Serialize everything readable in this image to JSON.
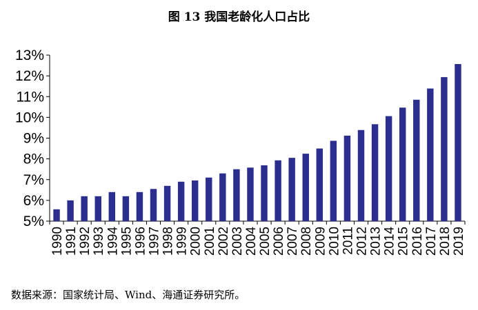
{
  "title": "图 13  我国老龄化人口占比",
  "source": "数据来源：国家统计局、Wind、海通证券研究所。",
  "colors": {
    "bar": "#2b2d8f",
    "axis": "#000000",
    "text": "#000000"
  },
  "chart_data": {
    "type": "bar",
    "title": "图 13  我国老龄化人口占比",
    "xlabel": "",
    "ylabel": "",
    "ylim": [
      5,
      13
    ],
    "y_ticks": [
      "5%",
      "6%",
      "7%",
      "8%",
      "9%",
      "10%",
      "11%",
      "12%",
      "13%"
    ],
    "grid": false,
    "legend": "none",
    "categories": [
      "1990",
      "1991",
      "1992",
      "1993",
      "1994",
      "1995",
      "1996",
      "1997",
      "1998",
      "1999",
      "2000",
      "2001",
      "2002",
      "2003",
      "2004",
      "2005",
      "2006",
      "2007",
      "2008",
      "2009",
      "2010",
      "2011",
      "2012",
      "2013",
      "2014",
      "2015",
      "2016",
      "2017",
      "2018",
      "2019"
    ],
    "values": [
      5.57,
      6.0,
      6.2,
      6.2,
      6.4,
      6.2,
      6.4,
      6.55,
      6.7,
      6.9,
      6.96,
      7.1,
      7.3,
      7.5,
      7.58,
      7.69,
      7.93,
      8.05,
      8.25,
      8.5,
      8.87,
      9.12,
      9.39,
      9.67,
      10.06,
      10.47,
      10.85,
      11.39,
      11.94,
      12.57
    ]
  }
}
